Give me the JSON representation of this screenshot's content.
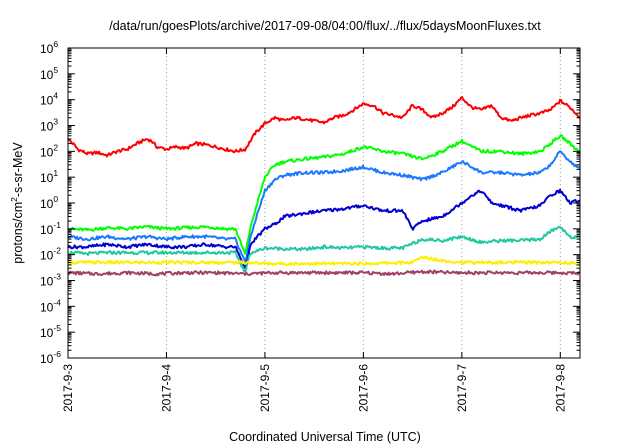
{
  "chart_data": {
    "type": "line",
    "title": "/data/run/goesPlots/archive/2017-09-08/04:00/flux/../flux/5daysMoonFluxes.txt",
    "xlabel": "Coordinated Universal Time (UTC)",
    "ylabel": "protons/cm2-s-sr-MeV",
    "ylabel_parts": [
      "protons/cm",
      "2",
      "-s-sr-MeV"
    ],
    "yscale": "log",
    "ylim_exponents": [
      -6,
      6
    ],
    "ytick_base": "10",
    "yticks": [
      {
        "exp": -6,
        "label": "-6"
      },
      {
        "exp": -5,
        "label": "-5"
      },
      {
        "exp": -4,
        "label": "-4"
      },
      {
        "exp": -3,
        "label": "-3"
      },
      {
        "exp": -2,
        "label": "-2"
      },
      {
        "exp": -1,
        "label": "-1"
      },
      {
        "exp": 0,
        "label": "0"
      },
      {
        "exp": 1,
        "label": "1"
      },
      {
        "exp": 2,
        "label": "2"
      },
      {
        "exp": 3,
        "label": "3"
      },
      {
        "exp": 4,
        "label": "4"
      },
      {
        "exp": 5,
        "label": "5"
      },
      {
        "exp": 6,
        "label": "6"
      }
    ],
    "xlim_days": [
      0,
      5.2
    ],
    "xticks": [
      {
        "day": 0,
        "label": "2017-9-3"
      },
      {
        "day": 1,
        "label": "2017-9-4"
      },
      {
        "day": 2,
        "label": "2017-9-5"
      },
      {
        "day": 3,
        "label": "2017-9-6"
      },
      {
        "day": 4,
        "label": "2017-9-7"
      },
      {
        "day": 5,
        "label": "2017-9-8"
      }
    ],
    "grid": "vertical-dotted",
    "series": [
      {
        "color": "#ff0000",
        "points": [
          [
            0,
            300
          ],
          [
            0.05,
            200
          ],
          [
            0.1,
            120
          ],
          [
            0.2,
            80
          ],
          [
            0.3,
            90
          ],
          [
            0.4,
            70
          ],
          [
            0.5,
            100
          ],
          [
            0.6,
            120
          ],
          [
            0.7,
            200
          ],
          [
            0.8,
            300
          ],
          [
            0.85,
            250
          ],
          [
            0.9,
            150
          ],
          [
            1.0,
            120
          ],
          [
            1.1,
            150
          ],
          [
            1.2,
            130
          ],
          [
            1.3,
            200
          ],
          [
            1.4,
            180
          ],
          [
            1.5,
            150
          ],
          [
            1.6,
            120
          ],
          [
            1.7,
            100
          ],
          [
            1.8,
            120
          ],
          [
            1.9,
            500
          ],
          [
            2.0,
            1200
          ],
          [
            2.1,
            2000
          ],
          [
            2.2,
            1500
          ],
          [
            2.3,
            2000
          ],
          [
            2.4,
            1800
          ],
          [
            2.5,
            1500
          ],
          [
            2.6,
            1300
          ],
          [
            2.7,
            2000
          ],
          [
            2.8,
            2500
          ],
          [
            2.9,
            4000
          ],
          [
            3.0,
            7000
          ],
          [
            3.1,
            6000
          ],
          [
            3.2,
            3000
          ],
          [
            3.3,
            2500
          ],
          [
            3.4,
            2000
          ],
          [
            3.5,
            6000
          ],
          [
            3.6,
            4000
          ],
          [
            3.7,
            2000
          ],
          [
            3.8,
            3000
          ],
          [
            3.9,
            5000
          ],
          [
            4.0,
            12000
          ],
          [
            4.1,
            5000
          ],
          [
            4.2,
            4000
          ],
          [
            4.3,
            6000
          ],
          [
            4.4,
            2000
          ],
          [
            4.5,
            1500
          ],
          [
            4.6,
            2000
          ],
          [
            4.7,
            2500
          ],
          [
            4.8,
            3000
          ],
          [
            4.9,
            4000
          ],
          [
            5.0,
            9000
          ],
          [
            5.1,
            5000
          ],
          [
            5.2,
            2000
          ]
        ]
      },
      {
        "color": "#00ff00",
        "points": [
          [
            0,
            0.1
          ],
          [
            0.2,
            0.09
          ],
          [
            0.4,
            0.11
          ],
          [
            0.6,
            0.1
          ],
          [
            0.8,
            0.12
          ],
          [
            1.0,
            0.1
          ],
          [
            1.2,
            0.11
          ],
          [
            1.4,
            0.12
          ],
          [
            1.6,
            0.1
          ],
          [
            1.7,
            0.1
          ],
          [
            1.8,
            0.01
          ],
          [
            1.85,
            0.1
          ],
          [
            1.9,
            0.5
          ],
          [
            2.0,
            10
          ],
          [
            2.1,
            30
          ],
          [
            2.2,
            40
          ],
          [
            2.4,
            50
          ],
          [
            2.6,
            60
          ],
          [
            2.8,
            80
          ],
          [
            3.0,
            150
          ],
          [
            3.2,
            100
          ],
          [
            3.4,
            80
          ],
          [
            3.6,
            50
          ],
          [
            3.8,
            100
          ],
          [
            4.0,
            250
          ],
          [
            4.1,
            150
          ],
          [
            4.2,
            100
          ],
          [
            4.4,
            100
          ],
          [
            4.6,
            80
          ],
          [
            4.8,
            100
          ],
          [
            4.9,
            200
          ],
          [
            5.0,
            400
          ],
          [
            5.1,
            200
          ],
          [
            5.2,
            90
          ]
        ]
      },
      {
        "color": "#1e78ff",
        "points": [
          [
            0,
            0.05
          ],
          [
            0.2,
            0.04
          ],
          [
            0.4,
            0.05
          ],
          [
            0.6,
            0.04
          ],
          [
            0.8,
            0.05
          ],
          [
            1.0,
            0.04
          ],
          [
            1.2,
            0.05
          ],
          [
            1.4,
            0.05
          ],
          [
            1.6,
            0.04
          ],
          [
            1.7,
            0.04
          ],
          [
            1.8,
            0.005
          ],
          [
            1.85,
            0.04
          ],
          [
            1.9,
            0.2
          ],
          [
            2.0,
            3
          ],
          [
            2.1,
            8
          ],
          [
            2.2,
            12
          ],
          [
            2.4,
            15
          ],
          [
            2.6,
            15
          ],
          [
            2.8,
            18
          ],
          [
            3.0,
            25
          ],
          [
            3.2,
            15
          ],
          [
            3.4,
            12
          ],
          [
            3.6,
            8
          ],
          [
            3.8,
            15
          ],
          [
            4.0,
            40
          ],
          [
            4.1,
            25
          ],
          [
            4.2,
            15
          ],
          [
            4.4,
            15
          ],
          [
            4.6,
            12
          ],
          [
            4.8,
            15
          ],
          [
            4.9,
            30
          ],
          [
            5.0,
            100
          ],
          [
            5.1,
            40
          ],
          [
            5.2,
            20
          ]
        ]
      },
      {
        "color": "#0000d0",
        "points": [
          [
            0,
            0.02
          ],
          [
            0.2,
            0.02
          ],
          [
            0.4,
            0.025
          ],
          [
            0.6,
            0.02
          ],
          [
            0.8,
            0.025
          ],
          [
            1.0,
            0.02
          ],
          [
            1.2,
            0.02
          ],
          [
            1.4,
            0.025
          ],
          [
            1.6,
            0.02
          ],
          [
            1.7,
            0.02
          ],
          [
            1.8,
            0.003
          ],
          [
            1.85,
            0.02
          ],
          [
            1.9,
            0.04
          ],
          [
            2.0,
            0.1
          ],
          [
            2.1,
            0.15
          ],
          [
            2.2,
            0.3
          ],
          [
            2.4,
            0.4
          ],
          [
            2.6,
            0.5
          ],
          [
            2.8,
            0.6
          ],
          [
            3.0,
            0.8
          ],
          [
            3.2,
            0.5
          ],
          [
            3.4,
            0.5
          ],
          [
            3.5,
            0.1
          ],
          [
            3.6,
            0.2
          ],
          [
            3.8,
            0.3
          ],
          [
            4.0,
            1.0
          ],
          [
            4.1,
            2.0
          ],
          [
            4.2,
            3.0
          ],
          [
            4.3,
            1.0
          ],
          [
            4.4,
            0.8
          ],
          [
            4.6,
            0.5
          ],
          [
            4.8,
            0.8
          ],
          [
            4.9,
            2.0
          ],
          [
            5.0,
            3.0
          ],
          [
            5.1,
            1.0
          ],
          [
            5.2,
            1.3
          ]
        ]
      },
      {
        "color": "#20c8a0",
        "points": [
          [
            0,
            0.012
          ],
          [
            0.2,
            0.011
          ],
          [
            0.4,
            0.012
          ],
          [
            0.6,
            0.012
          ],
          [
            0.8,
            0.012
          ],
          [
            1.0,
            0.012
          ],
          [
            1.2,
            0.012
          ],
          [
            1.4,
            0.012
          ],
          [
            1.6,
            0.012
          ],
          [
            1.7,
            0.012
          ],
          [
            1.8,
            0.002
          ],
          [
            1.85,
            0.012
          ],
          [
            1.9,
            0.013
          ],
          [
            2.0,
            0.018
          ],
          [
            2.2,
            0.017
          ],
          [
            2.4,
            0.016
          ],
          [
            2.6,
            0.02
          ],
          [
            2.8,
            0.018
          ],
          [
            3.0,
            0.02
          ],
          [
            3.2,
            0.018
          ],
          [
            3.4,
            0.018
          ],
          [
            3.6,
            0.04
          ],
          [
            3.8,
            0.035
          ],
          [
            4.0,
            0.05
          ],
          [
            4.2,
            0.03
          ],
          [
            4.4,
            0.035
          ],
          [
            4.6,
            0.035
          ],
          [
            4.8,
            0.04
          ],
          [
            4.9,
            0.08
          ],
          [
            5.0,
            0.12
          ],
          [
            5.1,
            0.05
          ],
          [
            5.2,
            0.045
          ]
        ]
      },
      {
        "color": "#ffee00",
        "points": [
          [
            0,
            0.005
          ],
          [
            0.5,
            0.005
          ],
          [
            1.0,
            0.005
          ],
          [
            1.5,
            0.005
          ],
          [
            1.8,
            0.005
          ],
          [
            2.0,
            0.0045
          ],
          [
            2.5,
            0.0045
          ],
          [
            3.0,
            0.0045
          ],
          [
            3.5,
            0.005
          ],
          [
            3.6,
            0.008
          ],
          [
            3.8,
            0.006
          ],
          [
            4.0,
            0.005
          ],
          [
            4.5,
            0.005
          ],
          [
            5.0,
            0.005
          ],
          [
            5.2,
            0.0045
          ]
        ]
      },
      {
        "color": "#a0406a",
        "points": [
          [
            0,
            0.002
          ],
          [
            0.3,
            0.0018
          ],
          [
            0.6,
            0.002
          ],
          [
            0.9,
            0.0018
          ],
          [
            1.2,
            0.002
          ],
          [
            1.5,
            0.002
          ],
          [
            1.8,
            0.0018
          ],
          [
            2.1,
            0.002
          ],
          [
            2.4,
            0.002
          ],
          [
            2.7,
            0.002
          ],
          [
            3.0,
            0.002
          ],
          [
            3.3,
            0.0018
          ],
          [
            3.6,
            0.0022
          ],
          [
            3.9,
            0.002
          ],
          [
            4.2,
            0.002
          ],
          [
            4.5,
            0.002
          ],
          [
            4.8,
            0.002
          ],
          [
            5.0,
            0.002
          ],
          [
            5.2,
            0.0019
          ]
        ]
      }
    ]
  }
}
